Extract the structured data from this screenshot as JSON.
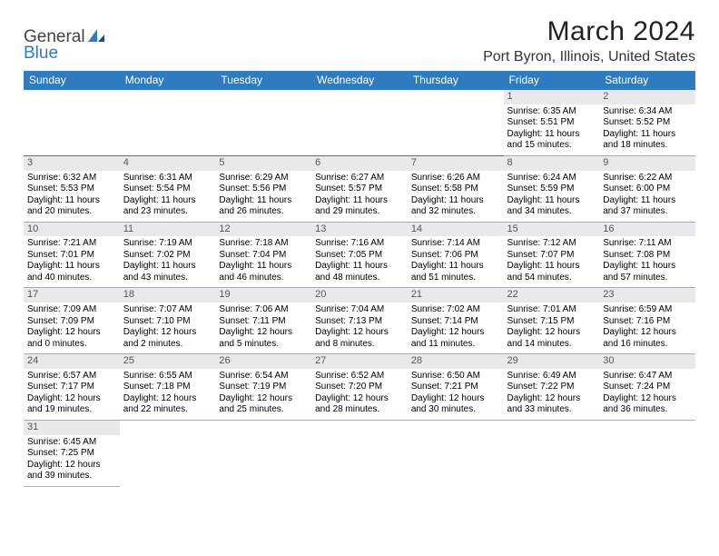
{
  "logo": {
    "general": "General",
    "blue": "Blue"
  },
  "title": "March 2024",
  "location": "Port Byron, Illinois, United States",
  "colors": {
    "accent": "#2f7bbf",
    "dayband": "#e9e9e9",
    "text": "#000000",
    "bg": "#ffffff"
  },
  "weekdays": [
    "Sunday",
    "Monday",
    "Tuesday",
    "Wednesday",
    "Thursday",
    "Friday",
    "Saturday"
  ],
  "weeks": [
    [
      null,
      null,
      null,
      null,
      null,
      {
        "n": "1",
        "sr": "Sunrise: 6:35 AM",
        "ss": "Sunset: 5:51 PM",
        "dl": "Daylight: 11 hours and 15 minutes."
      },
      {
        "n": "2",
        "sr": "Sunrise: 6:34 AM",
        "ss": "Sunset: 5:52 PM",
        "dl": "Daylight: 11 hours and 18 minutes."
      }
    ],
    [
      {
        "n": "3",
        "sr": "Sunrise: 6:32 AM",
        "ss": "Sunset: 5:53 PM",
        "dl": "Daylight: 11 hours and 20 minutes."
      },
      {
        "n": "4",
        "sr": "Sunrise: 6:31 AM",
        "ss": "Sunset: 5:54 PM",
        "dl": "Daylight: 11 hours and 23 minutes."
      },
      {
        "n": "5",
        "sr": "Sunrise: 6:29 AM",
        "ss": "Sunset: 5:56 PM",
        "dl": "Daylight: 11 hours and 26 minutes."
      },
      {
        "n": "6",
        "sr": "Sunrise: 6:27 AM",
        "ss": "Sunset: 5:57 PM",
        "dl": "Daylight: 11 hours and 29 minutes."
      },
      {
        "n": "7",
        "sr": "Sunrise: 6:26 AM",
        "ss": "Sunset: 5:58 PM",
        "dl": "Daylight: 11 hours and 32 minutes."
      },
      {
        "n": "8",
        "sr": "Sunrise: 6:24 AM",
        "ss": "Sunset: 5:59 PM",
        "dl": "Daylight: 11 hours and 34 minutes."
      },
      {
        "n": "9",
        "sr": "Sunrise: 6:22 AM",
        "ss": "Sunset: 6:00 PM",
        "dl": "Daylight: 11 hours and 37 minutes."
      }
    ],
    [
      {
        "n": "10",
        "sr": "Sunrise: 7:21 AM",
        "ss": "Sunset: 7:01 PM",
        "dl": "Daylight: 11 hours and 40 minutes."
      },
      {
        "n": "11",
        "sr": "Sunrise: 7:19 AM",
        "ss": "Sunset: 7:02 PM",
        "dl": "Daylight: 11 hours and 43 minutes."
      },
      {
        "n": "12",
        "sr": "Sunrise: 7:18 AM",
        "ss": "Sunset: 7:04 PM",
        "dl": "Daylight: 11 hours and 46 minutes."
      },
      {
        "n": "13",
        "sr": "Sunrise: 7:16 AM",
        "ss": "Sunset: 7:05 PM",
        "dl": "Daylight: 11 hours and 48 minutes."
      },
      {
        "n": "14",
        "sr": "Sunrise: 7:14 AM",
        "ss": "Sunset: 7:06 PM",
        "dl": "Daylight: 11 hours and 51 minutes."
      },
      {
        "n": "15",
        "sr": "Sunrise: 7:12 AM",
        "ss": "Sunset: 7:07 PM",
        "dl": "Daylight: 11 hours and 54 minutes."
      },
      {
        "n": "16",
        "sr": "Sunrise: 7:11 AM",
        "ss": "Sunset: 7:08 PM",
        "dl": "Daylight: 11 hours and 57 minutes."
      }
    ],
    [
      {
        "n": "17",
        "sr": "Sunrise: 7:09 AM",
        "ss": "Sunset: 7:09 PM",
        "dl": "Daylight: 12 hours and 0 minutes."
      },
      {
        "n": "18",
        "sr": "Sunrise: 7:07 AM",
        "ss": "Sunset: 7:10 PM",
        "dl": "Daylight: 12 hours and 2 minutes."
      },
      {
        "n": "19",
        "sr": "Sunrise: 7:06 AM",
        "ss": "Sunset: 7:11 PM",
        "dl": "Daylight: 12 hours and 5 minutes."
      },
      {
        "n": "20",
        "sr": "Sunrise: 7:04 AM",
        "ss": "Sunset: 7:13 PM",
        "dl": "Daylight: 12 hours and 8 minutes."
      },
      {
        "n": "21",
        "sr": "Sunrise: 7:02 AM",
        "ss": "Sunset: 7:14 PM",
        "dl": "Daylight: 12 hours and 11 minutes."
      },
      {
        "n": "22",
        "sr": "Sunrise: 7:01 AM",
        "ss": "Sunset: 7:15 PM",
        "dl": "Daylight: 12 hours and 14 minutes."
      },
      {
        "n": "23",
        "sr": "Sunrise: 6:59 AM",
        "ss": "Sunset: 7:16 PM",
        "dl": "Daylight: 12 hours and 16 minutes."
      }
    ],
    [
      {
        "n": "24",
        "sr": "Sunrise: 6:57 AM",
        "ss": "Sunset: 7:17 PM",
        "dl": "Daylight: 12 hours and 19 minutes."
      },
      {
        "n": "25",
        "sr": "Sunrise: 6:55 AM",
        "ss": "Sunset: 7:18 PM",
        "dl": "Daylight: 12 hours and 22 minutes."
      },
      {
        "n": "26",
        "sr": "Sunrise: 6:54 AM",
        "ss": "Sunset: 7:19 PM",
        "dl": "Daylight: 12 hours and 25 minutes."
      },
      {
        "n": "27",
        "sr": "Sunrise: 6:52 AM",
        "ss": "Sunset: 7:20 PM",
        "dl": "Daylight: 12 hours and 28 minutes."
      },
      {
        "n": "28",
        "sr": "Sunrise: 6:50 AM",
        "ss": "Sunset: 7:21 PM",
        "dl": "Daylight: 12 hours and 30 minutes."
      },
      {
        "n": "29",
        "sr": "Sunrise: 6:49 AM",
        "ss": "Sunset: 7:22 PM",
        "dl": "Daylight: 12 hours and 33 minutes."
      },
      {
        "n": "30",
        "sr": "Sunrise: 6:47 AM",
        "ss": "Sunset: 7:24 PM",
        "dl": "Daylight: 12 hours and 36 minutes."
      }
    ],
    [
      {
        "n": "31",
        "sr": "Sunrise: 6:45 AM",
        "ss": "Sunset: 7:25 PM",
        "dl": "Daylight: 12 hours and 39 minutes."
      },
      null,
      null,
      null,
      null,
      null,
      null
    ]
  ]
}
